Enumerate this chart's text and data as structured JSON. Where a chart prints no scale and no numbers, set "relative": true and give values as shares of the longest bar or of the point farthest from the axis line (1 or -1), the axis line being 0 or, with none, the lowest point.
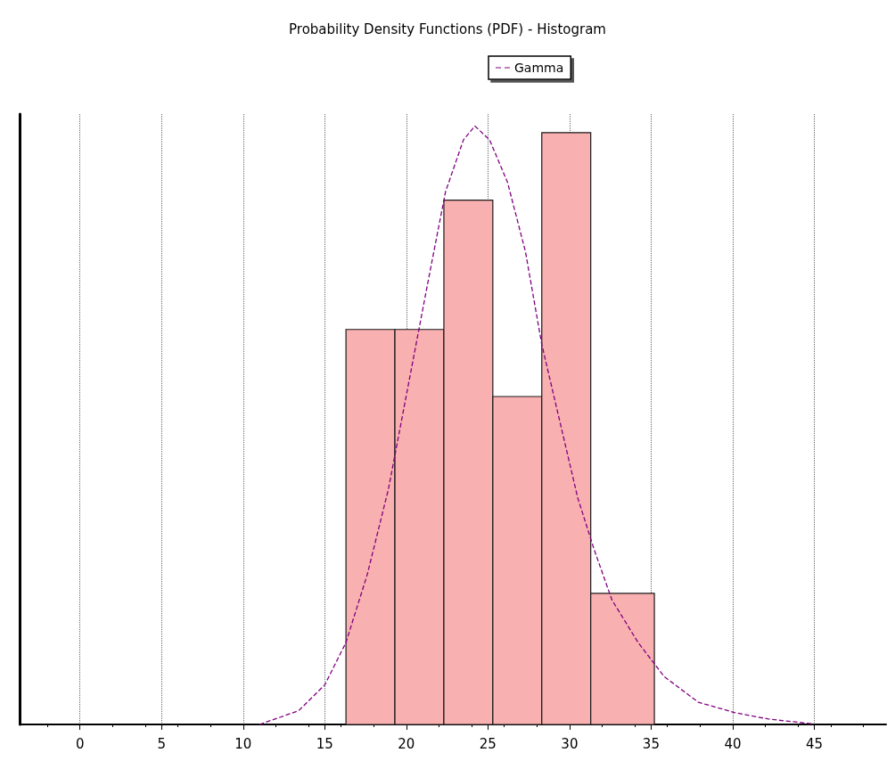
{
  "chart_data": {
    "type": "histogram",
    "title": "Probability Density Functions (PDF) - Histogram",
    "relative": true,
    "bins": [
      16.3,
      19.3,
      22.3,
      25.3,
      28.3,
      31.3,
      35.2
    ],
    "values": [
      0.66,
      0.66,
      0.876,
      0.548,
      0.989,
      0.219
    ],
    "color": "#f8b0b0",
    "series": [
      {
        "name": "Gamma",
        "type": "line",
        "color": "#800080",
        "line_style": "dashed",
        "marker": "none",
        "x": [
          11,
          13.4,
          15,
          16.3,
          17.6,
          18.9,
          20,
          21.4,
          22.4,
          23.5,
          24.2,
          25.1,
          26.2,
          27.3,
          28.3,
          29.4,
          30.5,
          31.5,
          32.6,
          34.2,
          35.8,
          37.9,
          40.1,
          42.2,
          44.9
        ],
        "values": [
          0,
          0.023,
          0.066,
          0.137,
          0.25,
          0.393,
          0.55,
          0.75,
          0.89,
          0.977,
          1,
          0.977,
          0.906,
          0.79,
          0.635,
          0.507,
          0.379,
          0.293,
          0.208,
          0.137,
          0.08,
          0.037,
          0.02,
          0.009,
          0.001
        ]
      }
    ],
    "xlim": [
      -3.7,
      49.4
    ],
    "xticks": [
      0,
      5,
      10,
      15,
      20,
      25,
      30,
      35,
      40,
      45
    ],
    "grid": "x",
    "legend": "top",
    "tick_labels": "x"
  }
}
